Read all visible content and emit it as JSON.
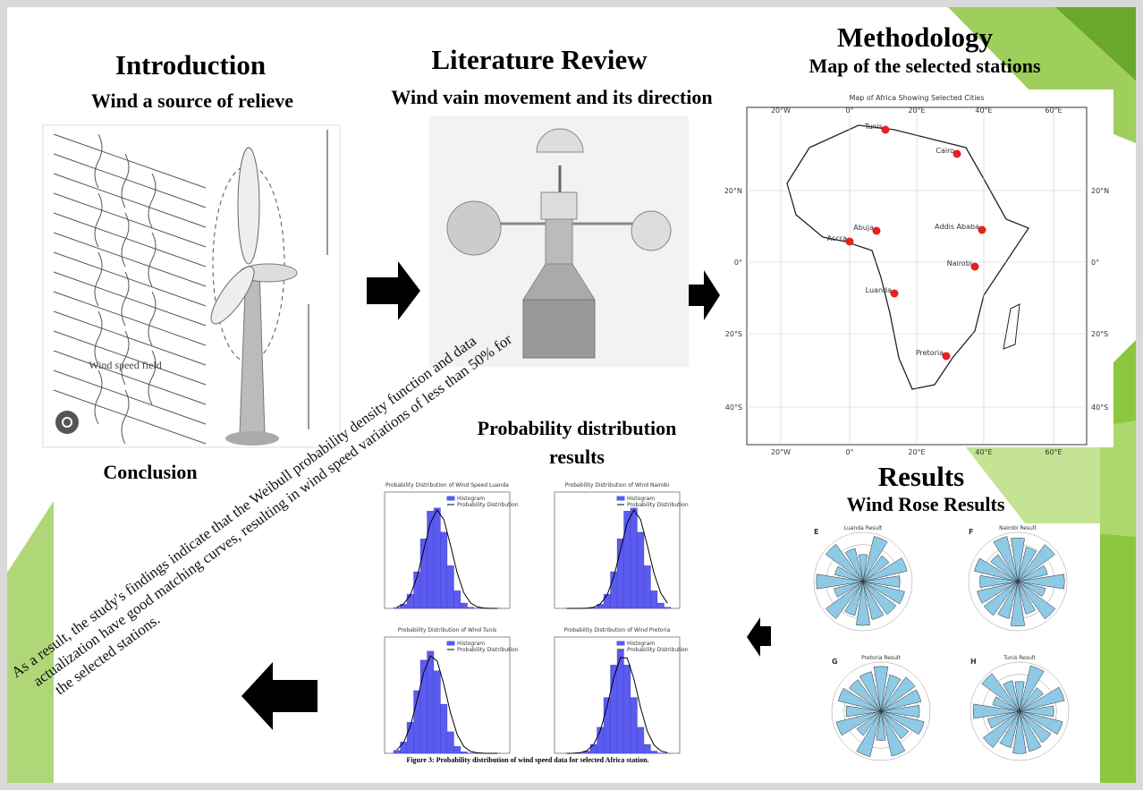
{
  "introduction": {
    "title": "Introduction",
    "subtitle": "Wind a source of relieve",
    "figure_label": "Wind speed field"
  },
  "literature_review": {
    "title": "Literature Review",
    "subtitle": "Wind vain movement and its direction"
  },
  "methodology": {
    "title": "Methodology",
    "subtitle": "Map of the selected stations",
    "map": {
      "title": "Map of Africa Showing Selected Cities",
      "cities": [
        "Tunis",
        "Cairo",
        "Abuja",
        "Addis Ababa",
        "Accra",
        "Nairobi",
        "Luanda",
        "Pretoria"
      ],
      "longitude_labels": [
        "20°W",
        "0°",
        "20°E",
        "40°E",
        "60°E"
      ],
      "latitude_labels": [
        "20°N",
        "0°",
        "20°S",
        "40°S"
      ]
    }
  },
  "results": {
    "title": "Results",
    "subtitle": "Wind Rose Results",
    "panels": [
      {
        "letter": "E",
        "title": "Luanda Result"
      },
      {
        "letter": "F",
        "title": "Nairobi Result"
      },
      {
        "letter": "G",
        "title": "Pretoria Result"
      },
      {
        "letter": "H",
        "title": "Tunis Result"
      }
    ]
  },
  "probability": {
    "title_lines": [
      "Probability distribution",
      "results"
    ],
    "panels": [
      "Probability Distribution of Wind Speed Luanda",
      "Probability Distribution of Wind Nairobi",
      "Probability Distribution of Wind Tunis",
      "Probability Distribution of Wind Pretoria"
    ],
    "legend": [
      "Histogram",
      "Probability Distribution"
    ],
    "caption": "Figure 3: Probability distribution of wind speed data for selected Africa station."
  },
  "conclusion": {
    "title": "Conclusion",
    "text_lines": [
      "As a result, the study's findings indicate that the Weibull probability density function and data",
      "actualization have good matching curves, resulting in wind speed variations of less than 50% for",
      "the selected stations."
    ]
  }
}
